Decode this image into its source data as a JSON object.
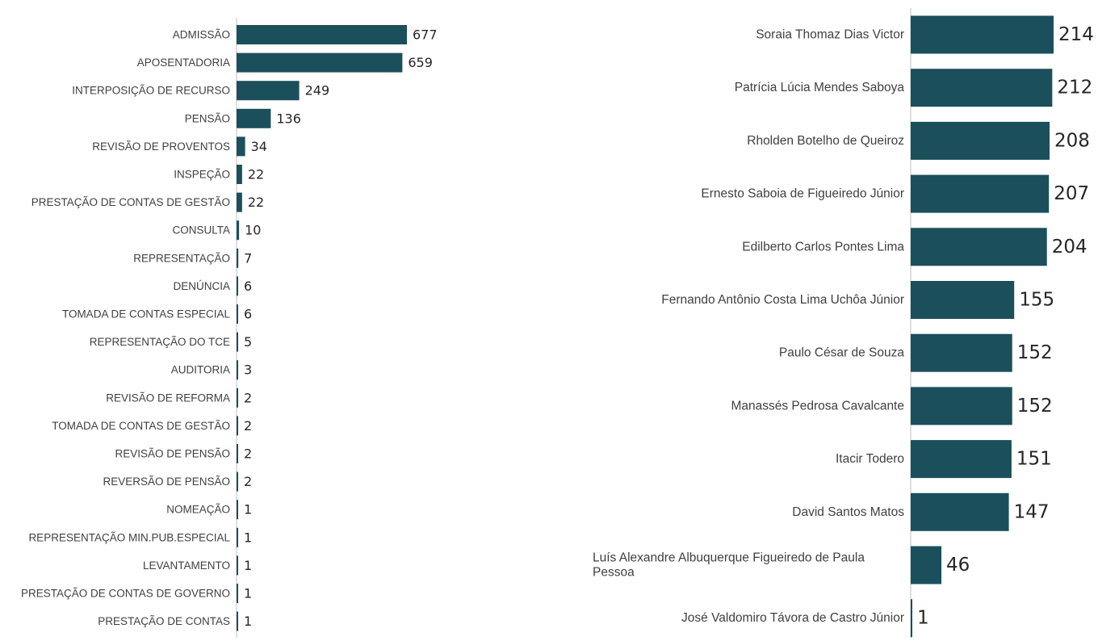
{
  "colors": {
    "bar": "#1b4f5c",
    "axis": "#bfbfbf",
    "label": "#404040",
    "value": "#262626"
  },
  "chart_data": [
    {
      "type": "bar",
      "orientation": "horizontal",
      "title": "",
      "xlabel": "",
      "ylabel": "",
      "grid": false,
      "categories": [
        "ADMISSÃO",
        "APOSENTADORIA",
        "INTERPOSIÇÃO DE RECURSO",
        "PENSÃO",
        "REVISÃO DE PROVENTOS",
        "INSPEÇÃO",
        "PRESTAÇÃO DE CONTAS DE GESTÃO",
        "CONSULTA",
        "REPRESENTAÇÃO",
        "DENÚNCIA",
        "TOMADA DE CONTAS ESPECIAL",
        "REPRESENTAÇÃO DO TCE",
        "AUDITORIA",
        "REVISÃO DE REFORMA",
        "TOMADA DE CONTAS DE GESTÃO",
        "REVISÃO DE PENSÃO",
        "REVERSÃO DE PENSÃO",
        "NOMEAÇÃO",
        "REPRESENTAÇÃO MIN.PUB.ESPECIAL",
        "LEVANTAMENTO",
        "PRESTAÇÃO DE CONTAS DE GOVERNO",
        "PRESTAÇÃO DE CONTAS"
      ],
      "values": [
        677,
        659,
        249,
        136,
        34,
        22,
        22,
        10,
        7,
        6,
        6,
        5,
        3,
        2,
        2,
        2,
        2,
        1,
        1,
        1,
        1,
        1
      ],
      "xlim": [
        0,
        677
      ]
    },
    {
      "type": "bar",
      "orientation": "horizontal",
      "title": "",
      "xlabel": "",
      "ylabel": "",
      "grid": false,
      "categories": [
        "Soraia Thomaz Dias Victor",
        "Patrícia Lúcia Mendes Saboya",
        "Rholden Botelho de Queiroz",
        "Ernesto Saboia de Figueiredo Júnior",
        "Edilberto Carlos Pontes Lima",
        "Fernando Antônio Costa Lima Uchôa Júnior",
        "Paulo César de Souza",
        "Manassés Pedrosa Cavalcante",
        "Itacir Todero",
        "David Santos Matos",
        "Luís Alexandre Albuquerque Figueiredo de Paula Pessoa",
        "José Valdomiro Távora de Castro Júnior"
      ],
      "values": [
        214,
        212,
        208,
        207,
        204,
        155,
        152,
        152,
        151,
        147,
        46,
        1
      ],
      "xlim": [
        0,
        214
      ]
    }
  ]
}
